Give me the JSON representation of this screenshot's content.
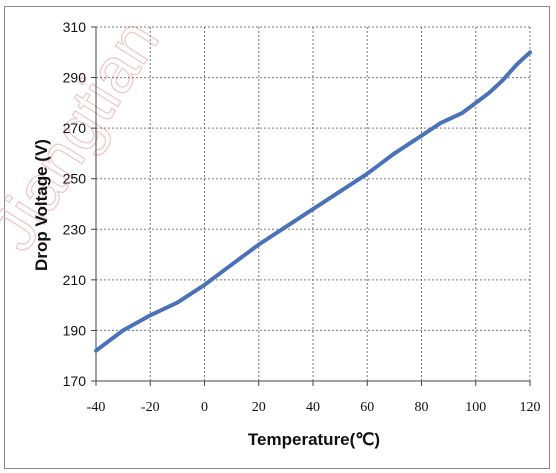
{
  "watermark_text": "Jiangtian",
  "chart_data": {
    "type": "line",
    "xlabel": "Temperature(℃)",
    "ylabel": "Drop Voltage (V)",
    "xlim": [
      -40,
      120
    ],
    "ylim": [
      170,
      310
    ],
    "xticks": [
      -40,
      -20,
      0,
      20,
      40,
      60,
      80,
      100,
      120
    ],
    "xtick_labels": [
      "-40",
      "-20",
      "0",
      "20",
      "40",
      "60",
      "80",
      "100",
      "120"
    ],
    "yticks": [
      170,
      190,
      210,
      230,
      250,
      270,
      290,
      310
    ],
    "ytick_labels": [
      "170",
      "190",
      "210",
      "230",
      "250",
      "270",
      "290",
      "310"
    ],
    "grid": true,
    "series": [
      {
        "color": "#4a72b8",
        "x": [
          -40,
          -30,
          -20,
          -10,
          0,
          10,
          20,
          30,
          40,
          50,
          60,
          70,
          80,
          87,
          95,
          100,
          105,
          110,
          115,
          120
        ],
        "values": [
          182,
          190,
          196,
          201,
          208,
          216,
          224,
          231,
          238,
          245,
          252,
          260,
          267,
          272,
          276,
          280,
          284,
          289,
          295,
          300
        ]
      }
    ]
  }
}
